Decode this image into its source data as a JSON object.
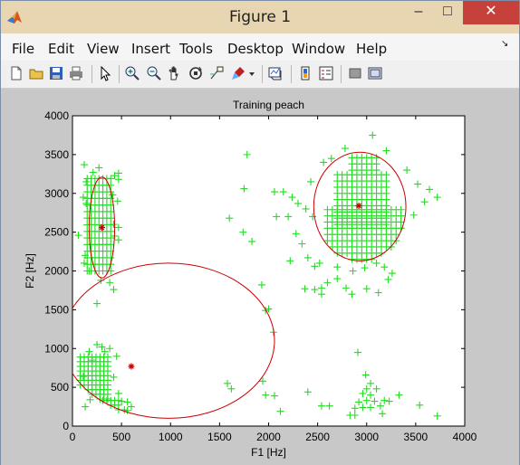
{
  "window": {
    "title": "Figure 1",
    "controls": {
      "minimize": "–",
      "maximize": "□",
      "close": "✕"
    }
  },
  "menu": [
    "File",
    "Edit",
    "View",
    "Insert",
    "Tools",
    "Desktop",
    "Window",
    "Help"
  ],
  "toolbar": {
    "icons": [
      "new-figure-icon",
      "open-file-icon",
      "save-icon",
      "print-icon",
      "edit-plot-arrow-icon",
      "zoom-in-icon",
      "zoom-out-icon",
      "pan-hand-icon",
      "rotate-3d-icon",
      "data-cursor-icon",
      "brush-icon",
      "brush-dropdown-icon",
      "link-plot-icon",
      "insert-colorbar-icon",
      "insert-legend-icon",
      "hide-plot-tools-icon",
      "show-plot-tools-icon"
    ]
  },
  "colors": {
    "points": "#22dd22",
    "centers": "#cc0000",
    "ellipses": "#cc0000",
    "close_button": "#c7413b"
  },
  "chart_data": {
    "type": "scatter",
    "title": "Training peach",
    "xlabel": "F1 [Hz]",
    "ylabel": "F2 [Hz]",
    "xlim": [
      0,
      4000
    ],
    "ylim": [
      0,
      4000
    ],
    "xticks": [
      0,
      500,
      1000,
      1500,
      2000,
      2500,
      3000,
      3500,
      4000
    ],
    "yticks": [
      0,
      500,
      1000,
      1500,
      2000,
      2500,
      3000,
      3500,
      4000
    ],
    "grid": false,
    "clusters": [
      {
        "center": [
          300,
          2560
        ],
        "ellipse": {
          "cx": 300,
          "cy": 2560,
          "rx": 130,
          "ry": 650
        },
        "fill_regions": [
          {
            "x": [
              150,
              420
            ],
            "y": [
              2000,
              3200
            ],
            "step": [
              40,
              85
            ]
          }
        ],
        "points": [
          [
            120,
            3370
          ],
          [
            270,
            3330
          ],
          [
            210,
            3270
          ],
          [
            140,
            3150
          ],
          [
            470,
            3260
          ],
          [
            470,
            3180
          ],
          [
            430,
            3230
          ],
          [
            110,
            2950
          ],
          [
            140,
            2870
          ],
          [
            410,
            2980
          ],
          [
            460,
            2900
          ],
          [
            420,
            2600
          ],
          [
            470,
            2560
          ],
          [
            470,
            2400
          ],
          [
            430,
            2450
          ],
          [
            130,
            2200
          ],
          [
            120,
            2100
          ],
          [
            170,
            2000
          ],
          [
            380,
            1850
          ],
          [
            420,
            1760
          ],
          [
            250,
            1580
          ],
          [
            290,
            1880
          ],
          [
            60,
            2460
          ]
        ]
      },
      {
        "center": [
          2920,
          2840
        ],
        "ellipse": {
          "cx": 2930,
          "cy": 2830,
          "rx": 470,
          "ry": 700
        },
        "fill_regions": [
          {
            "x": [
              2700,
              3200
            ],
            "y": [
              2600,
              3300
            ],
            "step": [
              50,
              80
            ]
          },
          {
            "x": [
              2600,
              3350
            ],
            "y": [
              2150,
              2800
            ],
            "step": [
              50,
              80
            ]
          },
          {
            "x": [
              2850,
              3100
            ],
            "y": [
              3300,
              3560
            ],
            "step": [
              50,
              80
            ]
          }
        ],
        "points": [
          [
            3060,
            3750
          ],
          [
            3200,
            3550
          ],
          [
            2780,
            3580
          ],
          [
            3410,
            3300
          ],
          [
            3520,
            3120
          ],
          [
            3640,
            3050
          ],
          [
            3720,
            2950
          ],
          [
            3590,
            2890
          ],
          [
            3480,
            2720
          ],
          [
            1780,
            3500
          ],
          [
            1750,
            3060
          ],
          [
            2150,
            3020
          ],
          [
            2060,
            3020
          ],
          [
            2240,
            2950
          ],
          [
            2300,
            2870
          ],
          [
            2380,
            2800
          ],
          [
            2430,
            3150
          ],
          [
            2560,
            3400
          ],
          [
            2640,
            3450
          ],
          [
            2450,
            2700
          ],
          [
            2200,
            2700
          ],
          [
            2080,
            2700
          ],
          [
            1600,
            2680
          ],
          [
            1740,
            2500
          ],
          [
            1830,
            2380
          ],
          [
            2280,
            2480
          ],
          [
            2340,
            2350
          ],
          [
            2220,
            2130
          ],
          [
            2400,
            2170
          ],
          [
            2470,
            2060
          ],
          [
            2520,
            2100
          ],
          [
            2370,
            1770
          ],
          [
            2470,
            1760
          ],
          [
            2540,
            1780
          ],
          [
            2600,
            1850
          ],
          [
            2540,
            1700
          ],
          [
            2700,
            1900
          ],
          [
            2790,
            1780
          ],
          [
            2850,
            1700
          ],
          [
            3000,
            1770
          ],
          [
            3120,
            1720
          ],
          [
            3220,
            1890
          ],
          [
            3260,
            1970
          ],
          [
            2700,
            2050
          ],
          [
            2860,
            2000
          ],
          [
            2980,
            2040
          ],
          [
            3100,
            2100
          ],
          [
            3180,
            2050
          ]
        ]
      },
      {
        "center": [
          600,
          770
        ],
        "ellipse": {
          "cx": 980,
          "cy": 1100,
          "rx": 1080,
          "ry": 1000
        },
        "fill_regions": [
          {
            "x": [
              80,
              380
            ],
            "y": [
              350,
              900
            ],
            "step": [
              40,
              60
            ]
          },
          {
            "x": [
              230,
              500
            ],
            "y": [
              90,
              330
            ],
            "step": [
              40,
              60
            ]
          }
        ],
        "points": [
          [
            380,
            1000
          ],
          [
            450,
            900
          ],
          [
            250,
            1050
          ],
          [
            420,
            630
          ],
          [
            110,
            640
          ],
          [
            300,
            1020
          ],
          [
            530,
            210
          ],
          [
            560,
            200
          ],
          [
            560,
            310
          ],
          [
            600,
            250
          ],
          [
            200,
            850
          ],
          [
            170,
            960
          ],
          [
            330,
            960
          ],
          [
            180,
            340
          ],
          [
            130,
            250
          ],
          [
            470,
            420
          ],
          [
            500,
            320
          ],
          [
            1940,
            580
          ],
          [
            1970,
            400
          ],
          [
            2060,
            390
          ],
          [
            2120,
            190
          ],
          [
            2400,
            440
          ],
          [
            2540,
            260
          ],
          [
            2620,
            260
          ],
          [
            2910,
            950
          ],
          [
            2990,
            660
          ],
          [
            3040,
            550
          ],
          [
            3000,
            480
          ],
          [
            3100,
            480
          ],
          [
            2960,
            420
          ],
          [
            3040,
            400
          ],
          [
            3000,
            330
          ],
          [
            2920,
            310
          ],
          [
            3080,
            320
          ],
          [
            3180,
            330
          ],
          [
            2880,
            230
          ],
          [
            2960,
            240
          ],
          [
            3040,
            240
          ],
          [
            3140,
            260
          ],
          [
            3230,
            320
          ],
          [
            2830,
            140
          ],
          [
            2880,
            140
          ],
          [
            3160,
            160
          ],
          [
            3330,
            400
          ],
          [
            3540,
            270
          ],
          [
            3720,
            130
          ],
          [
            1930,
            1820
          ],
          [
            2000,
            1510
          ],
          [
            1970,
            1490
          ],
          [
            2050,
            1210
          ],
          [
            1580,
            550
          ],
          [
            1620,
            480
          ]
        ]
      }
    ]
  }
}
